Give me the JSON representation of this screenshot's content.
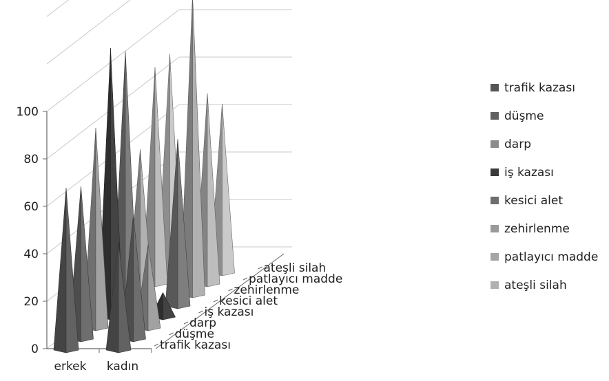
{
  "chart_data": {
    "type": "3d-pyramid-bar",
    "title": "",
    "categories": [
      "erkek",
      "kadın"
    ],
    "depth_categories": [
      "trafik kazası",
      "düşme",
      "darp",
      "iş kazası",
      "kesici alet",
      "zehirlenme",
      "patlayıcı madde",
      "ateşli silah"
    ],
    "series": [
      {
        "name": "trafik kazası",
        "color": "#555555",
        "values": [
          66,
          43
        ]
      },
      {
        "name": "düşme",
        "color": "#606060",
        "values": [
          62,
          50
        ]
      },
      {
        "name": "darp",
        "color": "#8c8c8c",
        "values": [
          82,
          33
        ]
      },
      {
        "name": "iş kazası",
        "color": "#3a3a3a",
        "values": [
          111,
          8
        ]
      },
      {
        "name": "kesici alet",
        "color": "#6e6e6e",
        "values": [
          105,
          68
        ]
      },
      {
        "name": "zehirlenme",
        "color": "#9a9a9a",
        "values": [
          59,
          124
        ]
      },
      {
        "name": "patlayıcı madde",
        "color": "#a5a5a5",
        "values": [
          89,
          78
        ]
      },
      {
        "name": "ateşli silah",
        "color": "#b0b0b0",
        "values": [
          90,
          69
        ]
      }
    ],
    "yticks": [
      "0",
      "20",
      "40",
      "60",
      "80",
      "100"
    ],
    "ylim": [
      0,
      100
    ],
    "grid": true,
    "legend_position": "right"
  }
}
